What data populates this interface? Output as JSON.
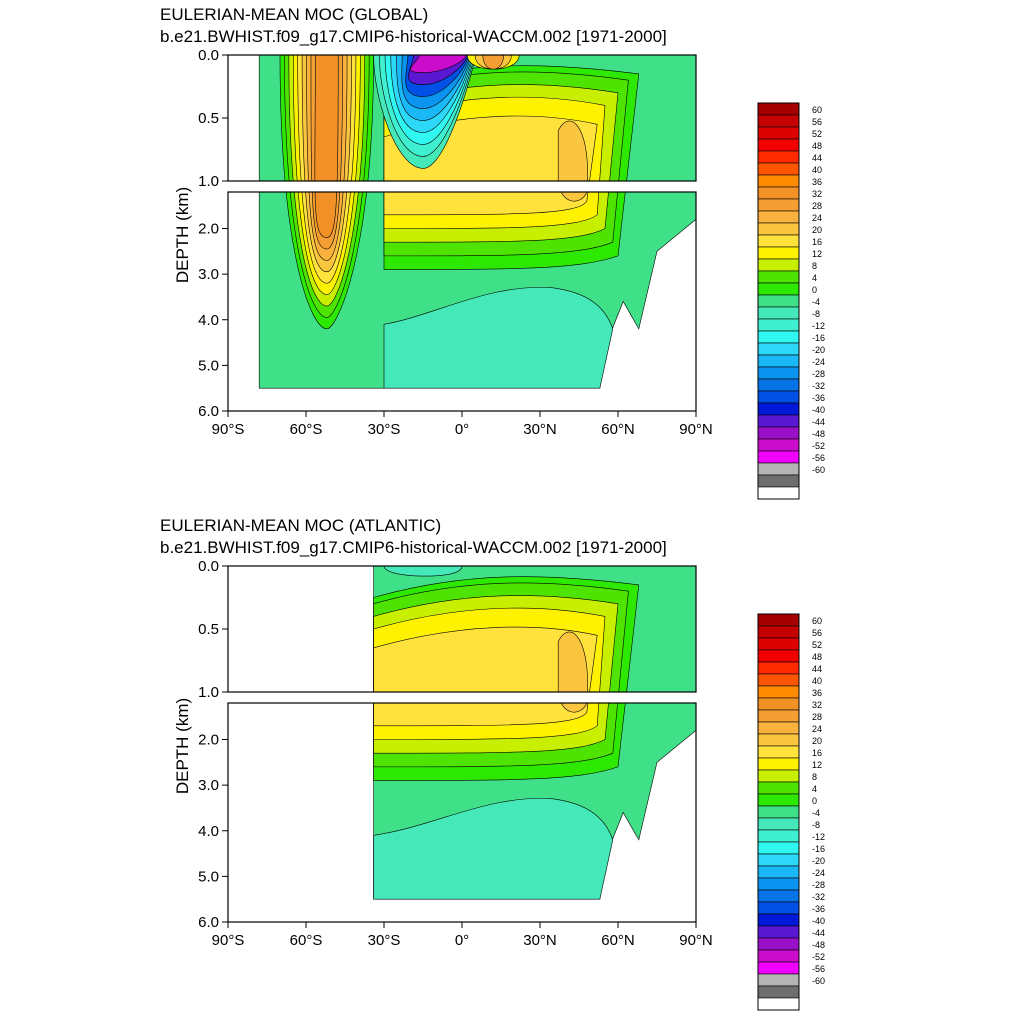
{
  "chart_data": [
    {
      "type": "contour",
      "title": "EULERIAN-MEAN MOC (GLOBAL)",
      "subtitle": "b.e21.BWHIST.f09_g17.CMIP6-historical-WACCM.002 [1971-2000]",
      "ylabel": "DEPTH (km)",
      "xlim": [
        -90,
        90
      ],
      "ylim": [
        6.0,
        0.0
      ],
      "y_break_km": 1.0,
      "upper_yticks": [
        "0.0",
        "0.5",
        "1.0"
      ],
      "lower_yticks": [
        "2.0",
        "3.0",
        "4.0",
        "5.0",
        "6.0"
      ],
      "xticks": [
        "90°S",
        "60°S",
        "30°S",
        "0°",
        "30°N",
        "60°N",
        "90°N"
      ],
      "colorbar_levels": [
        60,
        56,
        52,
        48,
        44,
        40,
        36,
        32,
        28,
        24,
        20,
        16,
        12,
        8,
        4,
        0,
        -4,
        -8,
        -12,
        -16,
        -20,
        -24,
        -28,
        -32,
        -36,
        -40,
        -44,
        -48,
        -52,
        -56,
        -60
      ],
      "features": [
        {
          "region": "Southern Ocean deep cell near 50°S",
          "approx_max": 36
        },
        {
          "region": "Atlantic-type NH overturning near 40°N, 0.5-1.5 km",
          "approx_max": 24
        },
        {
          "region": "Tropical surface cells near equator",
          "approx_min": -48
        },
        {
          "region": "Abyssal cell 0-50°N, 3.5-5.5 km",
          "approx_value": -4
        }
      ]
    },
    {
      "type": "contour",
      "title": "EULERIAN-MEAN MOC (ATLANTIC)",
      "subtitle": "b.e21.BWHIST.f09_g17.CMIP6-historical-WACCM.002 [1971-2000]",
      "ylabel": "DEPTH (km)",
      "xlim": [
        -90,
        90
      ],
      "ylim": [
        6.0,
        0.0
      ],
      "y_break_km": 1.0,
      "upper_yticks": [
        "0.0",
        "0.5",
        "1.0"
      ],
      "lower_yticks": [
        "2.0",
        "3.0",
        "4.0",
        "5.0",
        "6.0"
      ],
      "xticks": [
        "90°S",
        "60°S",
        "30°S",
        "0°",
        "30°N",
        "60°N",
        "90°N"
      ],
      "colorbar_levels": [
        60,
        56,
        52,
        48,
        44,
        40,
        36,
        32,
        28,
        24,
        20,
        16,
        12,
        8,
        4,
        0,
        -4,
        -8,
        -12,
        -16,
        -20,
        -24,
        -28,
        -32,
        -36,
        -40,
        -44,
        -48,
        -52,
        -56,
        -60
      ],
      "features": [
        {
          "region": "AMOC upper cell, max near 40°N, ~1 km",
          "approx_max": 24
        },
        {
          "region": "Abyssal AABW cell 30°S-50°N, below 3.5 km",
          "approx_value": -4
        },
        {
          "region": "Shallow tropical cell near 15°S",
          "approx_min": -8
        }
      ]
    }
  ],
  "colors": [
    "#a50000",
    "#c40000",
    "#dc0000",
    "#f20000",
    "#ff2a00",
    "#ff5500",
    "#ff8c00",
    "#f29126",
    "#f59e33",
    "#f8b23d",
    "#fbc63f",
    "#ffe23c",
    "#fff200",
    "#c9ef00",
    "#4ee300",
    "#2de800",
    "#40e088",
    "#45e8b8",
    "#3ff0d0",
    "#30f8f0",
    "#2dd8f8",
    "#1bb8f8",
    "#0a94f0",
    "#0673e6",
    "#0050e6",
    "#0018d8",
    "#5a18d2",
    "#9a10c8",
    "#cc0ccc",
    "#f200ff",
    "#b4b4b4",
    "#6e6e6e",
    "#ffffff"
  ]
}
